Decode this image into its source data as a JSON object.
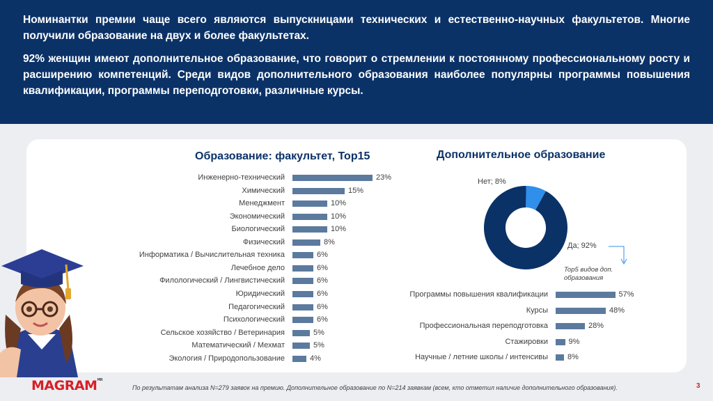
{
  "header": {
    "paragraph1": "Номинантки премии чаще всего являются выпускницами технических и естественно-научных факультетов. Многие получили образование на двух и более факультетах.",
    "paragraph2": "92% женщин имеют дополнительное образование, что говорит о стремлении к постоянному профессиональному росту и расширению компетенций. Среди видов дополнительного образования наиболее популярны программы повышения квалификации, программы переподготовки, различные курсы."
  },
  "chart_data": [
    {
      "type": "bar",
      "orientation": "horizontal",
      "title": "Образование: факультет, Top15",
      "categories": [
        "Инженерно-технический",
        "Химический",
        "Менеджмент",
        "Экономический",
        "Биологический",
        "Физический",
        "Информатика / Вычислительная техника",
        "Лечебное дело",
        "Филологический / Лингвистический",
        "Юридический",
        "Педагогический",
        "Психологический",
        "Сельское хозяйство / Ветеринария",
        "Математический / Мехмат",
        "Экология / Природопользование"
      ],
      "values": [
        23,
        15,
        10,
        10,
        10,
        8,
        6,
        6,
        6,
        6,
        6,
        6,
        5,
        5,
        4
      ],
      "value_labels": [
        "23%",
        "15%",
        "10%",
        "10%",
        "10%",
        "8%",
        "6%",
        "6%",
        "6%",
        "6%",
        "6%",
        "6%",
        "5%",
        "5%",
        "4%"
      ],
      "color": "#5b7a9e"
    },
    {
      "type": "pie",
      "style": "donut",
      "title": "Дополнительное образование",
      "slices": [
        {
          "label": "Да",
          "value": 92,
          "display": "Да; 92%",
          "color": "#0b3267"
        },
        {
          "label": "Нет",
          "value": 8,
          "display": "Нет; 8%",
          "color": "#2f8fea"
        }
      ]
    },
    {
      "type": "bar",
      "orientation": "horizontal",
      "title": "Top5 видов доп. образования",
      "categories": [
        "Программы повышения квалификации",
        "Курсы",
        "Профессиональная переподготовка",
        "Стажировки",
        "Научные / летние школы / интенсивы"
      ],
      "values": [
        57,
        48,
        28,
        9,
        8
      ],
      "value_labels": [
        "57%",
        "48%",
        "28%",
        "9%",
        "8%"
      ],
      "color": "#5b7a9e"
    }
  ],
  "top5_note": "Top5 видов доп. образования",
  "footnote": "По результатам анализа N=279 заявок на премию. Дополнительное образование по N=214 заявкам (всем, кто отметил наличие дополнительного образования).",
  "logo": {
    "text": "MAGRAM",
    "mark": "MR"
  },
  "page_number": "3",
  "icons": {
    "illustration": "graduate-girl-icon",
    "arrow": "arrow-down-icon"
  }
}
